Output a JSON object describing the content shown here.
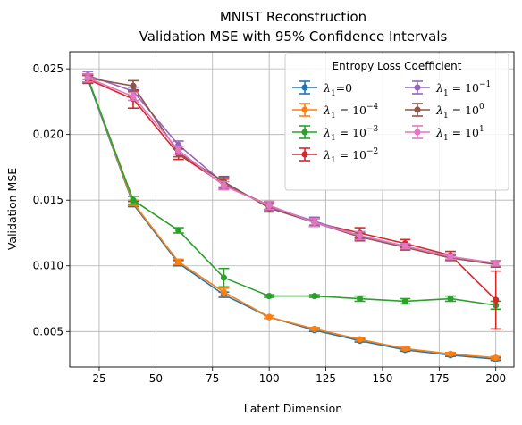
{
  "chart_data": {
    "type": "line",
    "title": "MNIST Reconstruction",
    "subtitle": "Validation MSE with 95% Confidence Intervals",
    "xlabel": "Latent Dimension",
    "ylabel": "Validation MSE",
    "xlim": [
      12,
      208
    ],
    "ylim": [
      0.0023,
      0.0263
    ],
    "xticks": [
      25,
      50,
      75,
      100,
      125,
      150,
      175,
      200
    ],
    "yticks": [
      0.005,
      0.01,
      0.015,
      0.02,
      0.025
    ],
    "ytick_labels": [
      "0.005",
      "0.010",
      "0.015",
      "0.020",
      "0.025"
    ],
    "xtick_labels": [
      "25",
      "50",
      "75",
      "100",
      "125",
      "150",
      "175",
      "200"
    ],
    "grid": true,
    "legend": {
      "title": "Entropy Loss Coefficient",
      "placement": "top-right",
      "columns": 2
    },
    "x": [
      20,
      40,
      60,
      80,
      100,
      120,
      140,
      160,
      180,
      200
    ],
    "series": [
      {
        "name": "λ1=0",
        "label_base": "λ",
        "label_sub": "1",
        "label_rest": "=0",
        "label_sup": "",
        "color": "#1f77b4",
        "values": [
          0.0242,
          0.0147,
          0.0102,
          0.0078,
          0.0061,
          0.0051,
          0.0043,
          0.0036,
          0.0032,
          0.0029
        ],
        "err": [
          0.0003,
          0.0002,
          0.0002,
          0.0002,
          0.0001,
          0.0001,
          0.0001,
          0.0001,
          0.0001,
          0.0001
        ]
      },
      {
        "name": "λ1=10^-4",
        "label_base": "λ",
        "label_sub": "1",
        "label_rest": " = 10",
        "label_sup": "−4",
        "color": "#ff7f0e",
        "values": [
          0.0243,
          0.0148,
          0.0103,
          0.008,
          0.0061,
          0.0052,
          0.0044,
          0.0037,
          0.0033,
          0.003
        ],
        "err": [
          0.0003,
          0.0002,
          0.0002,
          0.0003,
          0.0001,
          0.0001,
          0.0001,
          0.0001,
          0.0001,
          0.0001
        ]
      },
      {
        "name": "λ1=10^-3",
        "label_base": "λ",
        "label_sub": "1",
        "label_rest": " = 10",
        "label_sup": "−3",
        "color": "#2ca02c",
        "values": [
          0.0243,
          0.015,
          0.0127,
          0.0091,
          0.0077,
          0.0077,
          0.0075,
          0.0073,
          0.0075,
          0.007
        ],
        "err": [
          0.0003,
          0.0003,
          0.0002,
          0.0007,
          0.0001,
          0.0001,
          0.0002,
          0.0002,
          0.0002,
          0.0003
        ]
      },
      {
        "name": "λ1=10^-2",
        "label_base": "λ",
        "label_sub": "1",
        "label_rest": " = 10",
        "label_sup": "−2",
        "color": "#d62728",
        "values": [
          0.0242,
          0.0227,
          0.0185,
          0.0162,
          0.0146,
          0.0133,
          0.0125,
          0.0117,
          0.0108,
          0.0074
        ],
        "err": [
          0.0003,
          0.0007,
          0.0004,
          0.0004,
          0.0003,
          0.0003,
          0.0004,
          0.0003,
          0.0003,
          0.0022
        ]
      },
      {
        "name": "λ1=10^-1",
        "label_base": "λ",
        "label_sub": "1",
        "label_rest": " = 10",
        "label_sup": "−1",
        "color": "#9467bd",
        "values": [
          0.0245,
          0.0233,
          0.0192,
          0.0163,
          0.0145,
          0.0134,
          0.0123,
          0.0115,
          0.0107,
          0.0102
        ],
        "err": [
          0.0003,
          0.0003,
          0.0003,
          0.0004,
          0.0003,
          0.0003,
          0.0003,
          0.0002,
          0.0002,
          0.0002
        ]
      },
      {
        "name": "λ1=10^0",
        "label_base": "λ",
        "label_sub": "1",
        "label_rest": " = 10",
        "label_sup": "0",
        "color": "#8c564b",
        "values": [
          0.0243,
          0.0237,
          0.0186,
          0.0164,
          0.0144,
          0.0133,
          0.0122,
          0.0114,
          0.0106,
          0.0101
        ],
        "err": [
          0.0003,
          0.0004,
          0.0003,
          0.0004,
          0.0003,
          0.0003,
          0.0003,
          0.0002,
          0.0002,
          0.0002
        ]
      },
      {
        "name": "λ1=10^1",
        "label_base": "λ",
        "label_sub": "1",
        "label_rest": " = 10",
        "label_sup": "1",
        "color": "#e377c2",
        "values": [
          0.0243,
          0.0229,
          0.0188,
          0.0161,
          0.0146,
          0.0133,
          0.0123,
          0.0115,
          0.0107,
          0.0102
        ],
        "err": [
          0.0003,
          0.0003,
          0.0003,
          0.0003,
          0.0003,
          0.0003,
          0.0003,
          0.0002,
          0.0002,
          0.0002
        ]
      }
    ]
  }
}
